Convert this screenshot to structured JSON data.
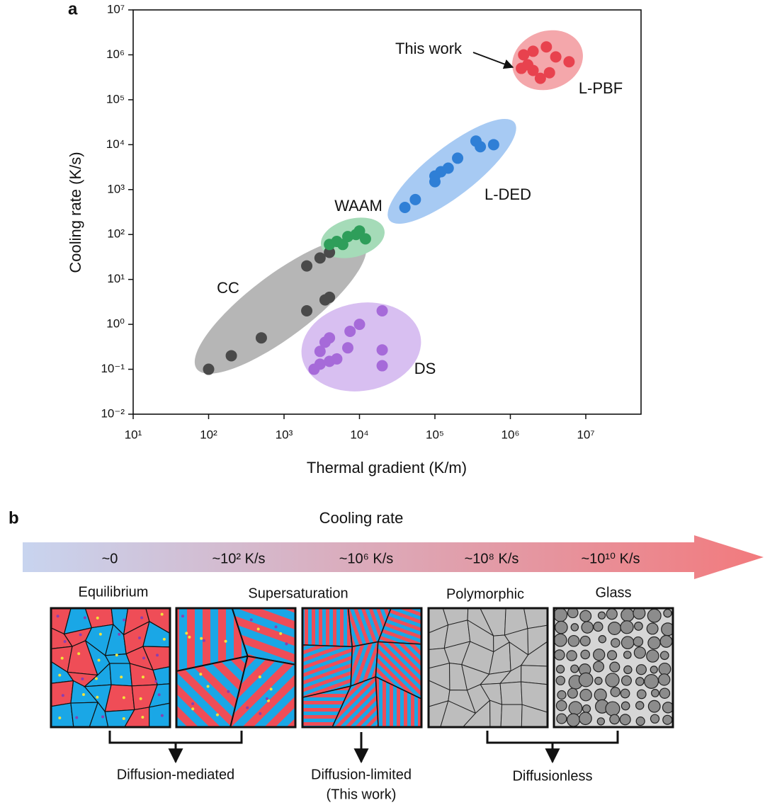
{
  "panel_a_label": "a",
  "chart_data": {
    "type": "scatter",
    "xlabel": "Thermal gradient (K/m)",
    "ylabel": "Cooling rate (K/s)",
    "xscale": "log",
    "yscale": "log",
    "xlim": [
      10,
      54000000
    ],
    "ylim": [
      0.01,
      10000000
    ],
    "xticks": [
      {
        "value": 10,
        "label": "10¹"
      },
      {
        "value": 100,
        "label": "10²"
      },
      {
        "value": 1000,
        "label": "10³"
      },
      {
        "value": 10000,
        "label": "10⁴"
      },
      {
        "value": 100000,
        "label": "10⁵"
      },
      {
        "value": 1000000,
        "label": "10⁶"
      },
      {
        "value": 10000000,
        "label": "10⁷"
      }
    ],
    "yticks": [
      {
        "value": 0.01,
        "label": "10⁻²"
      },
      {
        "value": 0.1,
        "label": "10⁻¹"
      },
      {
        "value": 1,
        "label": "10⁰"
      },
      {
        "value": 10,
        "label": "10¹"
      },
      {
        "value": 100,
        "label": "10²"
      },
      {
        "value": 1000,
        "label": "10³"
      },
      {
        "value": 10000,
        "label": "10⁴"
      },
      {
        "value": 100000,
        "label": "10⁵"
      },
      {
        "value": 1000000,
        "label": "10⁶"
      },
      {
        "value": 10000000,
        "label": "10⁷"
      }
    ],
    "annotations": [
      "This work"
    ],
    "series": [
      {
        "name": "CC",
        "color": "#4a4a4a",
        "label_color": "#111111",
        "x": [
          100,
          200,
          500,
          2000,
          2000,
          3000,
          4000,
          3500,
          4000
        ],
        "values": [
          0.1,
          0.2,
          0.5,
          2,
          20,
          30,
          40,
          3.5,
          4
        ]
      },
      {
        "name": "WAAM",
        "color": "#2e9e5a",
        "label_color": "#3aa86a",
        "x": [
          4000,
          5000,
          7000,
          9000,
          10000,
          12000,
          6000
        ],
        "values": [
          60,
          70,
          90,
          100,
          120,
          80,
          60
        ]
      },
      {
        "name": "L-DED",
        "color": "#2f7fd6",
        "label_color": "#2f7fd6",
        "x": [
          40000,
          55000,
          100000,
          120000,
          150000,
          200000,
          350000,
          400000,
          600000,
          100000
        ],
        "values": [
          400,
          600,
          1500,
          2500,
          3000,
          5000,
          12000,
          9000,
          10000,
          2000
        ]
      },
      {
        "name": "L-PBF",
        "color": "#e8424e",
        "label_color": "#e24a55",
        "x": [
          1500000,
          2000000,
          3000000,
          4000000,
          6000000,
          1400000,
          2000000,
          2500000,
          3300000,
          1700000
        ],
        "values": [
          1000000,
          1200000,
          1500000,
          900000,
          700000,
          500000,
          450000,
          300000,
          400000,
          600000
        ]
      },
      {
        "name": "DS",
        "color": "#a66ad9",
        "label_color": "#b47fe0",
        "x": [
          2500,
          3000,
          4000,
          5000,
          3000,
          3500,
          4000,
          7000,
          7500,
          10000,
          20000,
          20000,
          20000
        ],
        "values": [
          0.1,
          0.13,
          0.15,
          0.17,
          0.25,
          0.4,
          0.5,
          0.3,
          0.7,
          1,
          2,
          0.27,
          0.12
        ]
      }
    ]
  },
  "panel_b": {
    "label": "b",
    "title": "Cooling rate",
    "rates": [
      "~0",
      "~10² K/s",
      "~10⁶ K/s",
      "~10⁸ K/s",
      "~10¹⁰ K/s"
    ],
    "structures": [
      "Equilibrium",
      "Supersaturation",
      "Polymorphic",
      "Glass"
    ],
    "mechanisms": [
      "Diffusion-mediated",
      "Diffusion-limited",
      "(This work)",
      "Diffusionless"
    ]
  }
}
